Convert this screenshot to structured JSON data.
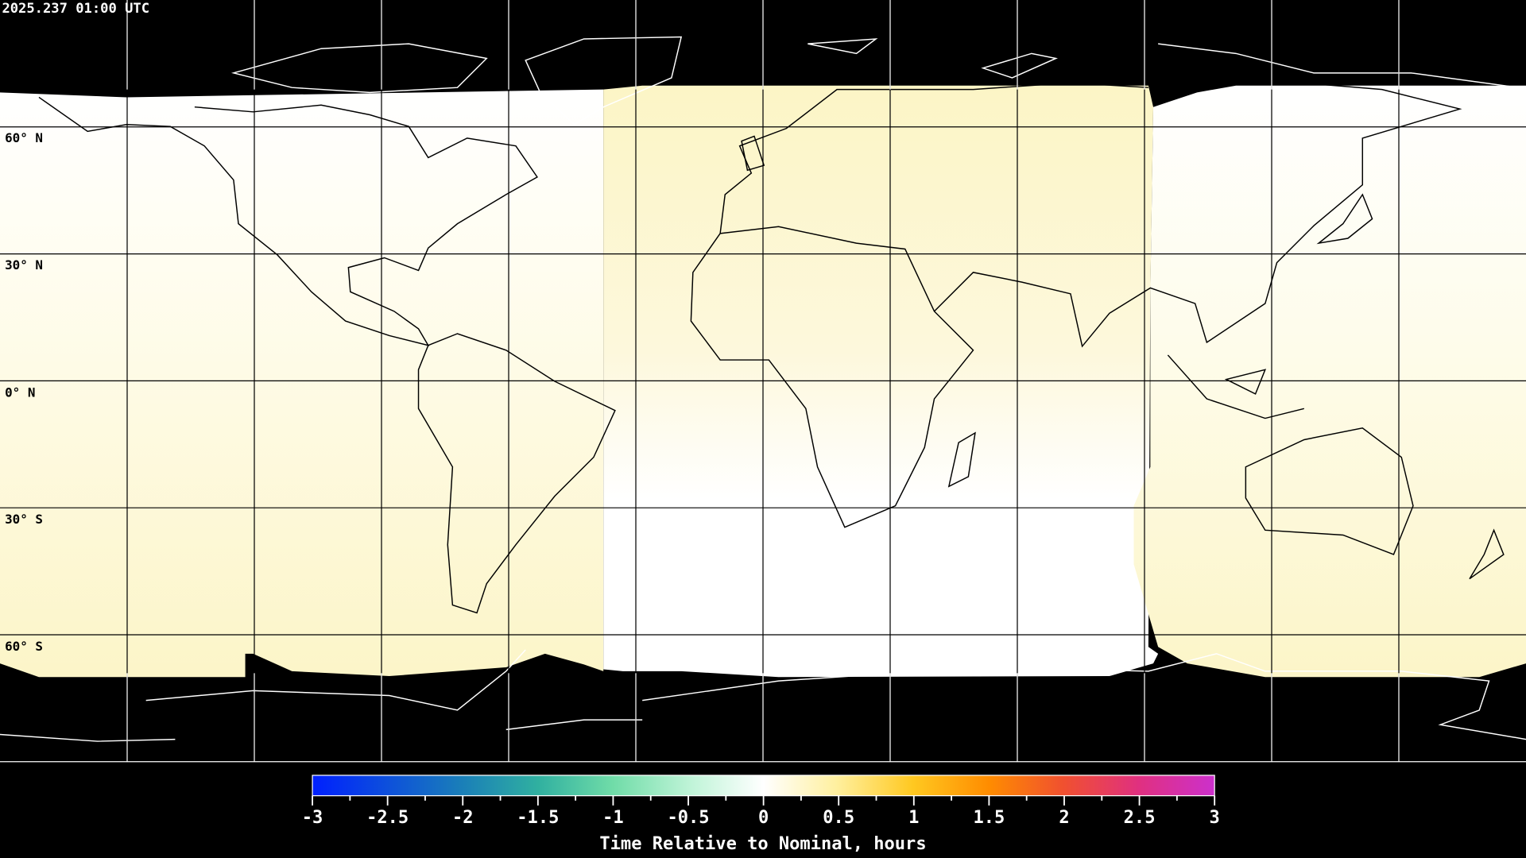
{
  "timestamp": "2025.237 01:00 UTC",
  "latitude_labels": [
    "60° N",
    "30° N",
    "0° N",
    "30° S",
    "60° S"
  ],
  "colorbar": {
    "title": "Time Relative to Nominal, hours",
    "range": [
      -3,
      3
    ],
    "ticks": [
      "-3",
      "-2.5",
      "-2",
      "-1.5",
      "-1",
      "-0.5",
      "0",
      "0.5",
      "1",
      "1.5",
      "2",
      "2.5",
      "3"
    ],
    "colors": [
      "#0020ff",
      "#1a7fb8",
      "#30b0a0",
      "#70dca8",
      "#c0f4d8",
      "#ffffff",
      "#fff0a0",
      "#ffc820",
      "#ff8c00",
      "#f05030",
      "#e03080",
      "#cc30cc"
    ]
  },
  "chart_data": {
    "type": "heatmap",
    "projection": "equirectangular",
    "grid": true,
    "grid_spacing_degrees": 30,
    "regions": [
      {
        "area": "Americas / Pacific east",
        "value_hours_approx": 0.2
      },
      {
        "area": "Europe / Africa / Western Asia",
        "value_hours_approx": 0.15
      },
      {
        "area": "East Asia / Australia / West Pacific",
        "value_hours_approx": 0.2
      }
    ],
    "no_data_color": "#000000"
  }
}
